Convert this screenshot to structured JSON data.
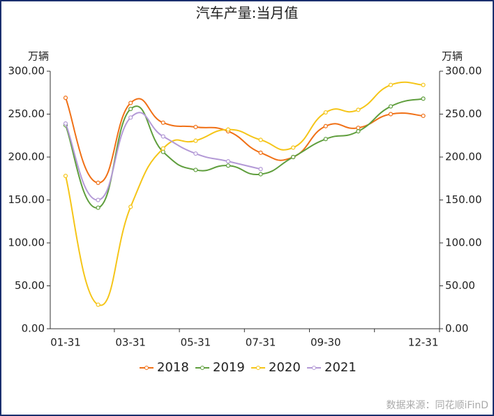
{
  "chart_data": {
    "type": "line",
    "title": "汽车产量:当月值",
    "y_label": "万辆",
    "y2_label": "万辆",
    "categories": [
      "01-31",
      null,
      "03-31",
      null,
      "05-31",
      null,
      "07-31",
      null,
      "09-30",
      null,
      null,
      "12-31"
    ],
    "series": [
      {
        "name": "2018",
        "color": "#f07016",
        "values": [
          269,
          170,
          263,
          240,
          235,
          230,
          205,
          200,
          236,
          234,
          250,
          248
        ]
      },
      {
        "name": "2019",
        "color": "#5f9e3d",
        "values": [
          237,
          141,
          256,
          206,
          185,
          190,
          180,
          200,
          221,
          230,
          259,
          268
        ]
      },
      {
        "name": "2020",
        "color": "#f5c518",
        "values": [
          178,
          28,
          142,
          210,
          219,
          232,
          220,
          211,
          252,
          255,
          284,
          284
        ]
      },
      {
        "name": "2021",
        "color": "#b399d6",
        "values": [
          239,
          150,
          246,
          224,
          204,
          195,
          186,
          null,
          null,
          null,
          null,
          null
        ]
      }
    ],
    "ylim": [
      0,
      300
    ],
    "yticks": [
      {
        "value": 0,
        "label": "0.00"
      },
      {
        "value": 50,
        "label": "50.00"
      },
      {
        "value": 100,
        "label": "100.00"
      },
      {
        "value": 150,
        "label": "150.00"
      },
      {
        "value": 200,
        "label": "200.00"
      },
      {
        "value": 250,
        "label": "250.00"
      },
      {
        "value": 300,
        "label": "300.00"
      }
    ],
    "y2lim": [
      0,
      300
    ],
    "y2ticks": [
      {
        "value": 0,
        "label": "0.00"
      },
      {
        "value": 50,
        "label": "50.00"
      },
      {
        "value": 100,
        "label": "100.00"
      },
      {
        "value": 150,
        "label": "150.00"
      },
      {
        "value": 200,
        "label": "200.00"
      },
      {
        "value": 250,
        "label": "250.00"
      },
      {
        "value": 300,
        "label": "300.00"
      }
    ],
    "legend": "bottom",
    "source": "数据来源：同花顺iFinD"
  }
}
